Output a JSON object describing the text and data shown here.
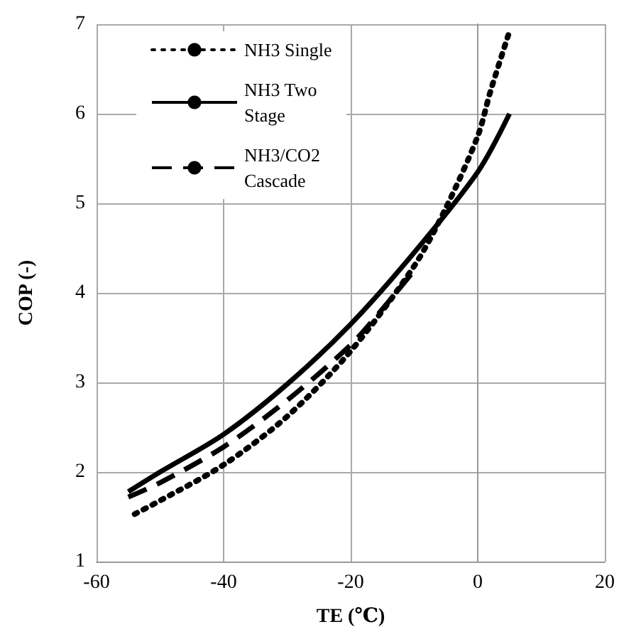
{
  "chart_data": {
    "type": "line",
    "xlabel": "TE (℃)",
    "ylabel": "COP (-)",
    "xlim": [
      -60,
      20
    ],
    "xticks": [
      -60,
      -40,
      -20,
      0,
      20
    ],
    "ylim": [
      1,
      7
    ],
    "yticks": [
      1,
      2,
      3,
      4,
      5,
      6,
      7
    ],
    "grid": true,
    "legend": "top left",
    "marker": "none",
    "series": [
      {
        "name": "NH3 Single",
        "color": "#000000",
        "line_style": "dotted",
        "x": [
          -54,
          -50,
          -40,
          -30,
          -20,
          -10,
          -5,
          0,
          2,
          5
        ],
        "values": [
          1.53,
          1.68,
          2.08,
          2.62,
          3.35,
          4.3,
          4.95,
          5.75,
          6.25,
          6.92
        ]
      },
      {
        "name": "NH3 Two Stage",
        "color": "#000000",
        "line_style": "solid",
        "x": [
          -55,
          -50,
          -40,
          -30,
          -20,
          -10,
          0,
          5
        ],
        "values": [
          1.78,
          2.0,
          2.42,
          2.98,
          3.65,
          4.45,
          5.35,
          6.0
        ]
      },
      {
        "name": "NH3/CO2 Cascade",
        "color": "#000000",
        "line_style": "dashed",
        "x": [
          -55,
          -50,
          -40,
          -30,
          -20,
          -15,
          -10
        ],
        "values": [
          1.72,
          1.88,
          2.28,
          2.8,
          3.42,
          3.82,
          4.25
        ]
      }
    ]
  }
}
